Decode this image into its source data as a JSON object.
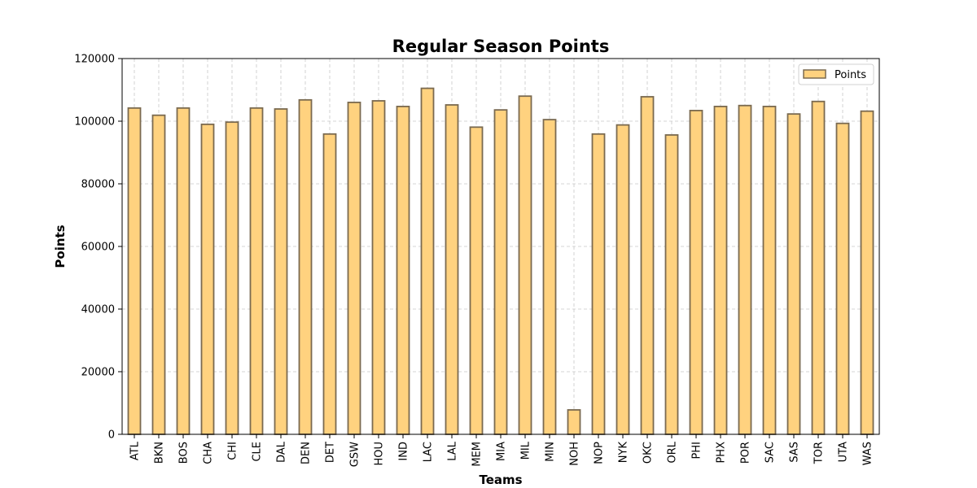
{
  "chart_data": {
    "type": "bar",
    "title": "Regular Season Points",
    "xlabel": "Teams",
    "ylabel": "Points",
    "ylim": [
      0,
      120000
    ],
    "yticks": [
      0,
      20000,
      40000,
      60000,
      80000,
      100000,
      120000
    ],
    "grid": true,
    "legend_position": "top-right",
    "categories": [
      "ATL",
      "BKN",
      "BOS",
      "CHA",
      "CHI",
      "CLE",
      "DAL",
      "DEN",
      "DET",
      "GSW",
      "HOU",
      "IND",
      "LAC",
      "LAL",
      "MEM",
      "MIA",
      "MIL",
      "MIN",
      "NOH",
      "NOP",
      "NYK",
      "OKC",
      "ORL",
      "PHI",
      "PHX",
      "POR",
      "SAC",
      "SAS",
      "TOR",
      "UTA",
      "WAS"
    ],
    "series": [
      {
        "name": "Points",
        "values": [
          104200,
          101900,
          104200,
          99000,
          99700,
          104200,
          103900,
          106800,
          95900,
          106000,
          106500,
          104700,
          110500,
          105200,
          98100,
          103600,
          108000,
          100500,
          7800,
          95900,
          98800,
          107800,
          95600,
          103400,
          104700,
          105000,
          104700,
          102300,
          106300,
          99300,
          103200
        ]
      }
    ],
    "colors": {
      "bar_fill": "#ffd27f",
      "bar_edge": "#7a6a50",
      "grid": "#c8c8c8"
    }
  }
}
